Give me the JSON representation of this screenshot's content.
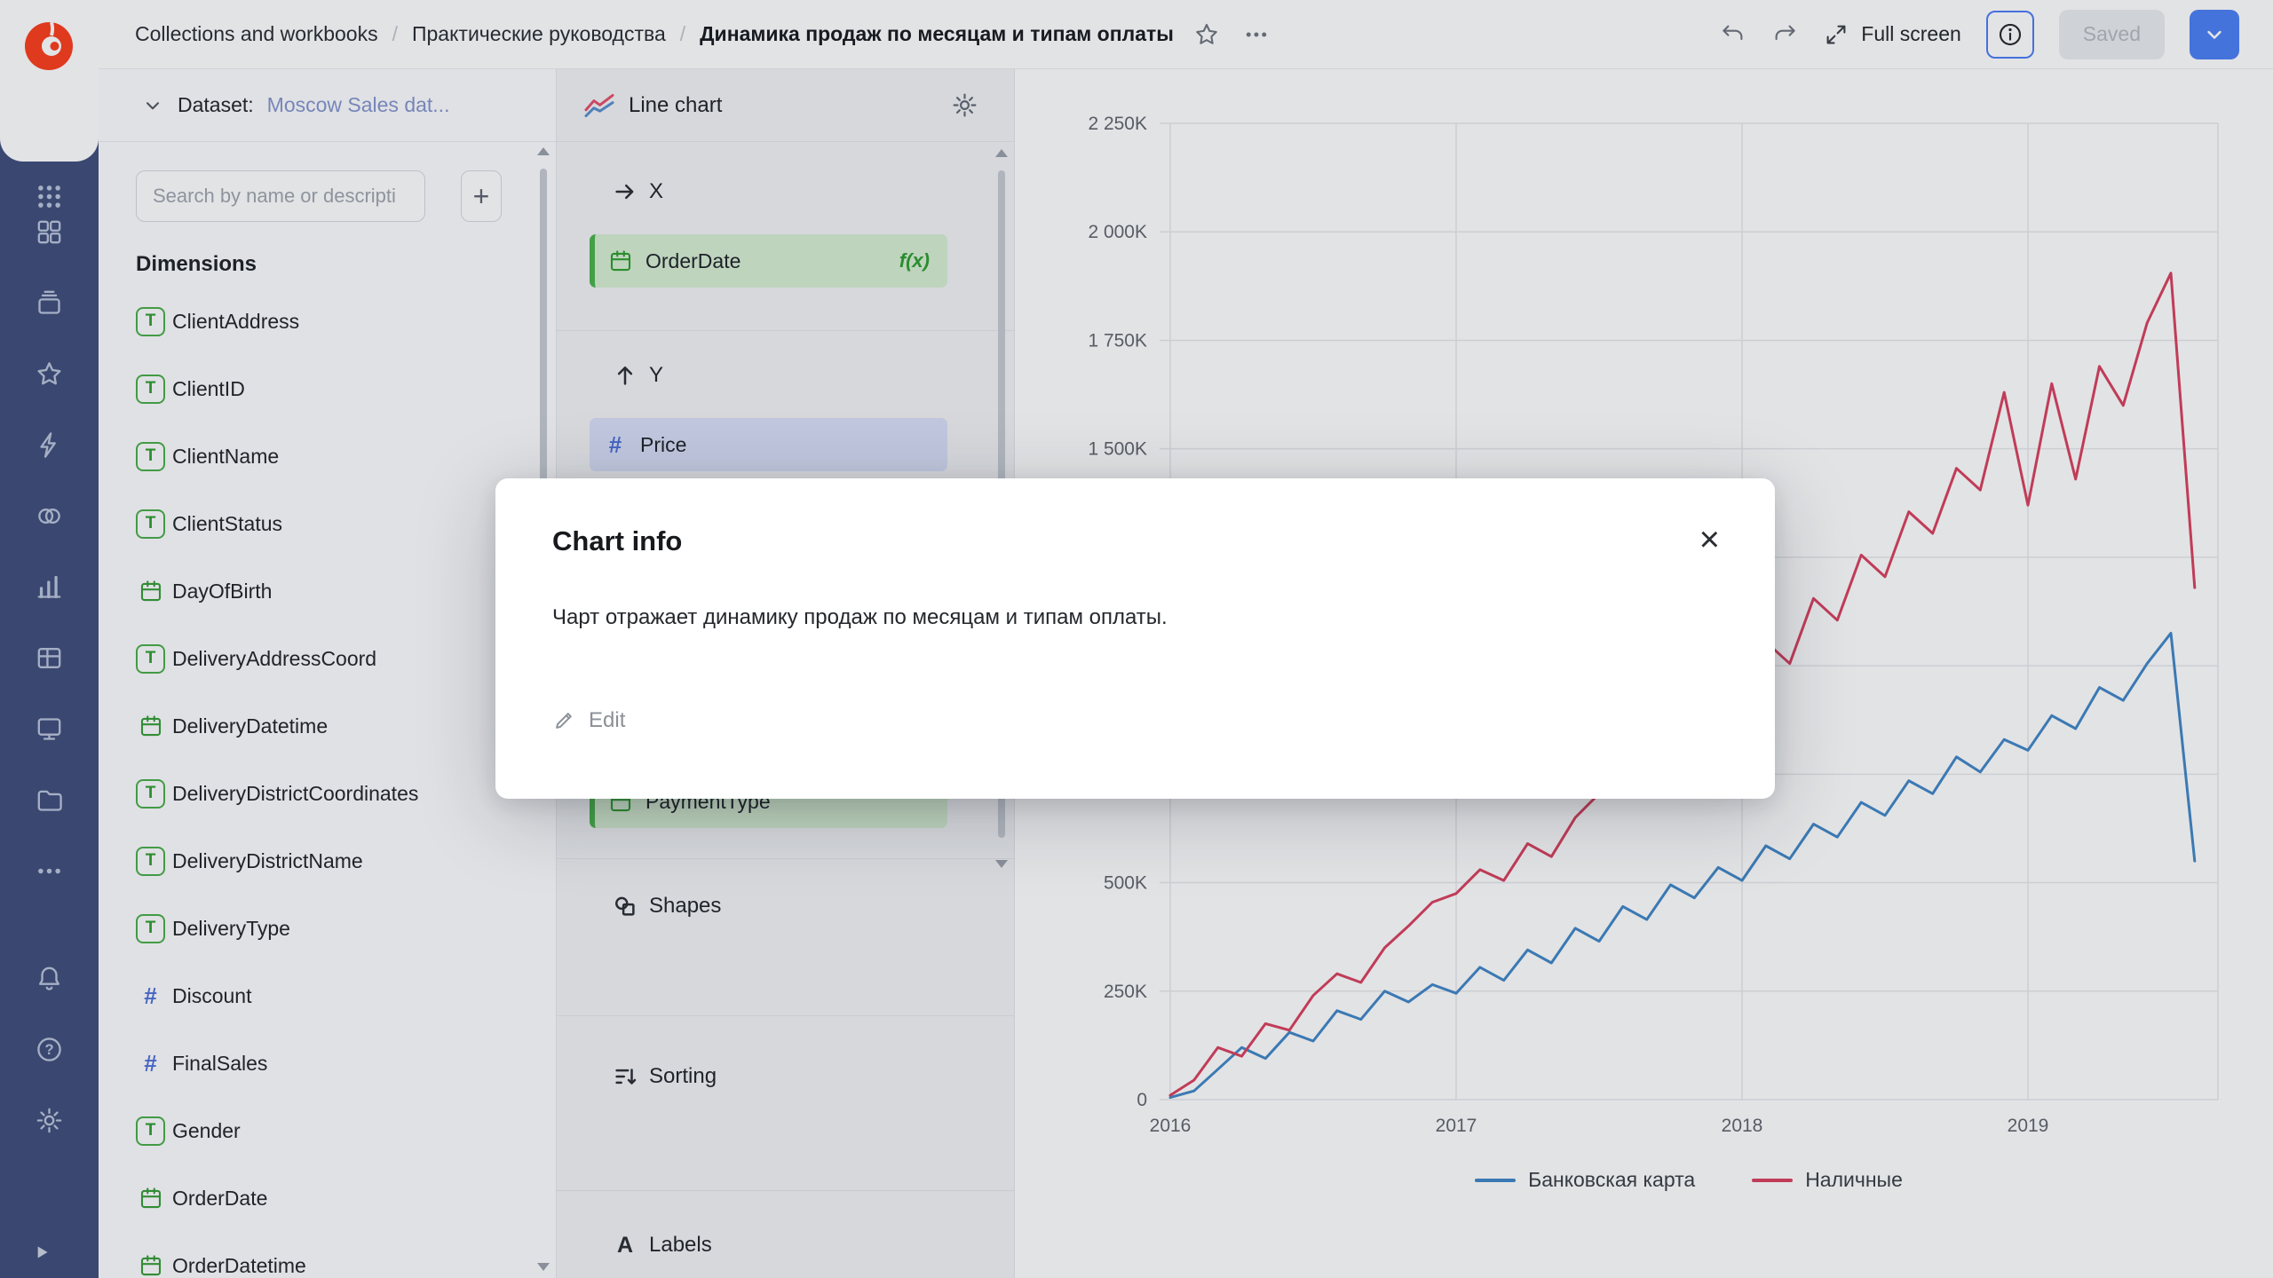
{
  "header": {
    "breadcrumbs": [
      "Collections and workbooks",
      "Практические руководства",
      "Динамика продаж по месяцам и типам оплаты"
    ],
    "fullscreen_label": "Full screen",
    "saved_label": "Saved"
  },
  "sidebar": {
    "nav_icons": [
      "dashboard",
      "collections",
      "star",
      "bolt",
      "datasets",
      "bars",
      "table",
      "monitor",
      "folder",
      "more"
    ],
    "bottom_icons": [
      "bell",
      "help",
      "gear"
    ]
  },
  "dataset_panel": {
    "label": "Dataset:",
    "dataset_name": "Moscow Sales dat...",
    "search_placeholder": "Search by name or descripti",
    "add_button_label": "+",
    "section_title": "Dimensions",
    "fields": [
      {
        "name": "ClientAddress",
        "type": "string"
      },
      {
        "name": "ClientID",
        "type": "string"
      },
      {
        "name": "ClientName",
        "type": "string"
      },
      {
        "name": "ClientStatus",
        "type": "string"
      },
      {
        "name": "DayOfBirth",
        "type": "date"
      },
      {
        "name": "DeliveryAddressCoord",
        "type": "string"
      },
      {
        "name": "DeliveryDatetime",
        "type": "date"
      },
      {
        "name": "DeliveryDistrictCoordinates",
        "type": "string"
      },
      {
        "name": "DeliveryDistrictName",
        "type": "string"
      },
      {
        "name": "DeliveryType",
        "type": "string"
      },
      {
        "name": "Discount",
        "type": "number"
      },
      {
        "name": "FinalSales",
        "type": "number"
      },
      {
        "name": "Gender",
        "type": "string"
      },
      {
        "name": "OrderDate",
        "type": "date"
      },
      {
        "name": "OrderDatetime",
        "type": "date"
      }
    ]
  },
  "config_panel": {
    "chart_type_label": "Line chart",
    "x_section": {
      "label": "X",
      "field": "OrderDate",
      "fx_badge": "f(x)"
    },
    "y_section": {
      "label": "Y",
      "field": "Price"
    },
    "colors_field": "PaymentType",
    "shapes_label": "Shapes",
    "sorting_label": "Sorting",
    "labels_label": "Labels"
  },
  "modal": {
    "title": "Chart info",
    "body": "Чарт отражает динамику продаж по месяцам и типам оплаты.",
    "edit_label": "Edit",
    "close_glyph": "×"
  },
  "chart_data": {
    "type": "line",
    "title": "",
    "xlabel": "",
    "ylabel": "",
    "x_freq": "monthly",
    "x_start": "2016-01",
    "x_tick_labels": [
      "2016",
      "2017",
      "2018",
      "2019"
    ],
    "y_tick_values": [
      0,
      250,
      500,
      750,
      1000,
      1250,
      1500,
      1750,
      2000,
      2250
    ],
    "y_tick_labels": [
      "0",
      "250K",
      "500K",
      "750K",
      "1 000K",
      "1 250K",
      "1 500K",
      "1 750K",
      "2 000K",
      "2 250K"
    ],
    "y_unit": "K",
    "ylim": [
      0,
      2250
    ],
    "grid": true,
    "legend_position": "bottom",
    "series": [
      {
        "name": "Банковская карта",
        "color": "#4187c7",
        "values": [
          5,
          20,
          70,
          120,
          95,
          155,
          135,
          205,
          185,
          250,
          225,
          265,
          245,
          305,
          275,
          345,
          315,
          395,
          365,
          445,
          415,
          495,
          465,
          535,
          505,
          585,
          555,
          635,
          605,
          685,
          655,
          735,
          705,
          790,
          755,
          830,
          805,
          885,
          855,
          950,
          920,
          1005,
          1075,
          550
        ]
      },
      {
        "name": "Наличные",
        "color": "#d9415f",
        "values": [
          10,
          45,
          120,
          100,
          175,
          160,
          240,
          290,
          270,
          350,
          400,
          455,
          475,
          530,
          505,
          590,
          560,
          650,
          705,
          780,
          755,
          855,
          905,
          985,
          955,
          1055,
          1005,
          1155,
          1105,
          1255,
          1205,
          1355,
          1305,
          1455,
          1405,
          1630,
          1370,
          1650,
          1430,
          1690,
          1600,
          1790,
          1905,
          1180
        ]
      }
    ]
  }
}
